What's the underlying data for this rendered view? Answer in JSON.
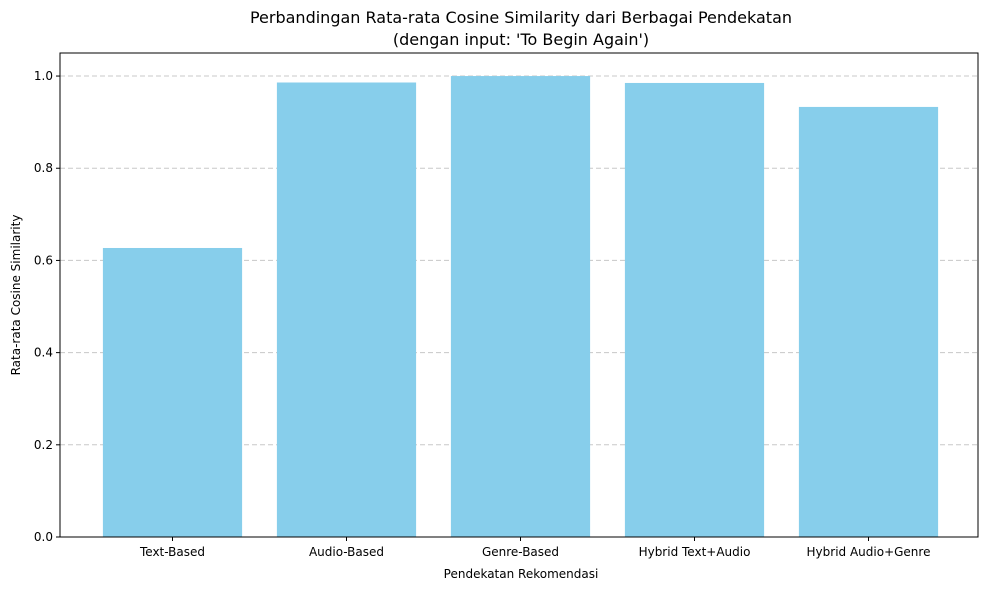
{
  "chart_data": {
    "type": "bar",
    "title": "Perbandingan Rata-rata Cosine Similarity dari Berbagai Pendekatan",
    "subtitle": "(dengan input: 'To Begin Again')",
    "xlabel": "Pendekatan Rekomendasi",
    "ylabel": "Rata-rata Cosine Similarity",
    "categories": [
      "Text-Based",
      "Audio-Based",
      "Genre-Based",
      "Hybrid Text+Audio",
      "Hybrid Audio+Genre"
    ],
    "values": [
      0.627,
      0.986,
      1.0,
      0.985,
      0.933
    ],
    "ylim": [
      0,
      1.05
    ],
    "yticks": [
      "0.0",
      "0.2",
      "0.4",
      "0.6",
      "0.8",
      "1.0"
    ],
    "grid": "y-dashed",
    "bar_color": "#87ceeb",
    "grid_color": "#c8c8c8"
  }
}
